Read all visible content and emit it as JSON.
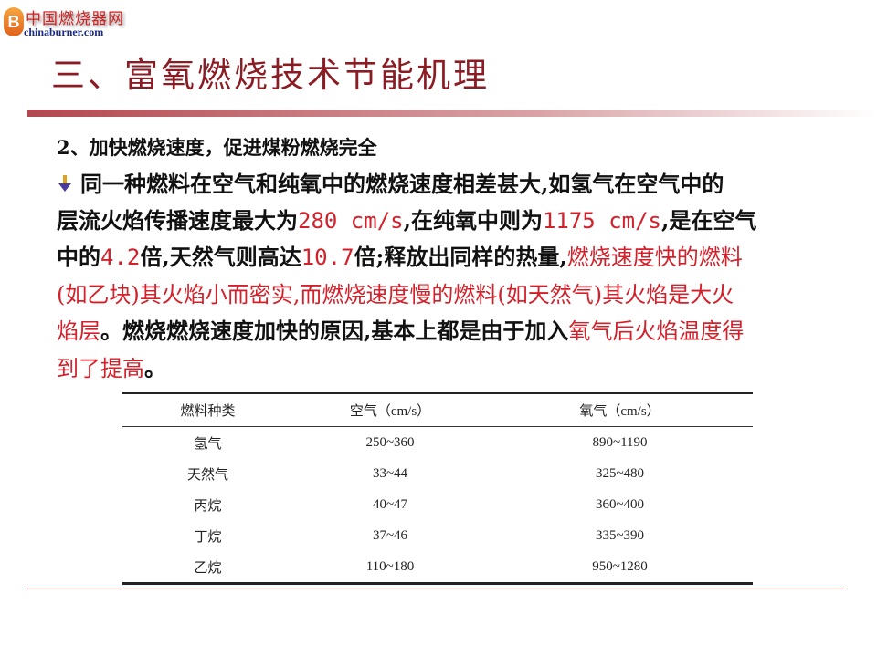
{
  "logo": {
    "mark": "B",
    "cn": "中国燃烧器网",
    "en": "chinaburner.com"
  },
  "title": "三、富氧燃烧技术节能机理",
  "subtitle": "2、加快燃烧速度，促进煤粉燃烧完全",
  "colors": {
    "title": "#8b1c24",
    "highlight": "#d3202a",
    "text": "#111111"
  },
  "paragraph": {
    "bullet_icon": "down-arrow-bullet",
    "lines": [
      [
        {
          "t": "同一种燃料在空气和纯氧中的燃烧速度相差甚大,如氢气在空气中的",
          "red": false
        }
      ],
      [
        {
          "t": "层流火焰传播速度最大为",
          "red": false
        },
        {
          "t": "280 cm/s",
          "red": true,
          "mono": true
        },
        {
          "t": ",在纯氧中则为",
          "red": false
        },
        {
          "t": "1175 cm/s",
          "red": true,
          "mono": true
        },
        {
          "t": ",是在空气",
          "red": false
        }
      ],
      [
        {
          "t": "中的",
          "red": false
        },
        {
          "t": "4.2",
          "red": true,
          "mono": true
        },
        {
          "t": "倍,天然气则高达",
          "red": false
        },
        {
          "t": "10.7",
          "red": true,
          "mono": true
        },
        {
          "t": "倍;释放出同样的热量,",
          "red": false
        },
        {
          "t": "燃烧速度快的燃料",
          "red": true
        }
      ],
      [
        {
          "t": "(如乙块)其火焰小而密实,而燃烧速度慢的燃料(如天然气)其火焰是大火",
          "red": true
        }
      ],
      [
        {
          "t": "焰层",
          "red": true
        },
        {
          "t": "。燃烧燃烧速度加快的原因,基本上都是由于加入",
          "red": false
        },
        {
          "t": "氧气后火焰温度得",
          "red": true
        }
      ],
      [
        {
          "t": "到了提高",
          "red": true
        },
        {
          "t": "。",
          "red": false
        }
      ]
    ]
  },
  "table": {
    "headers": [
      "燃料种类",
      "空气（cm/s）",
      "氧气（cm/s）"
    ],
    "rows": [
      [
        "氢气",
        "250~360",
        "890~1190"
      ],
      [
        "天然气",
        "33~44",
        "325~480"
      ],
      [
        "丙烷",
        "40~47",
        "360~400"
      ],
      [
        "丁烷",
        "37~46",
        "335~390"
      ],
      [
        "乙烷",
        "110~180",
        "950~1280"
      ]
    ]
  }
}
